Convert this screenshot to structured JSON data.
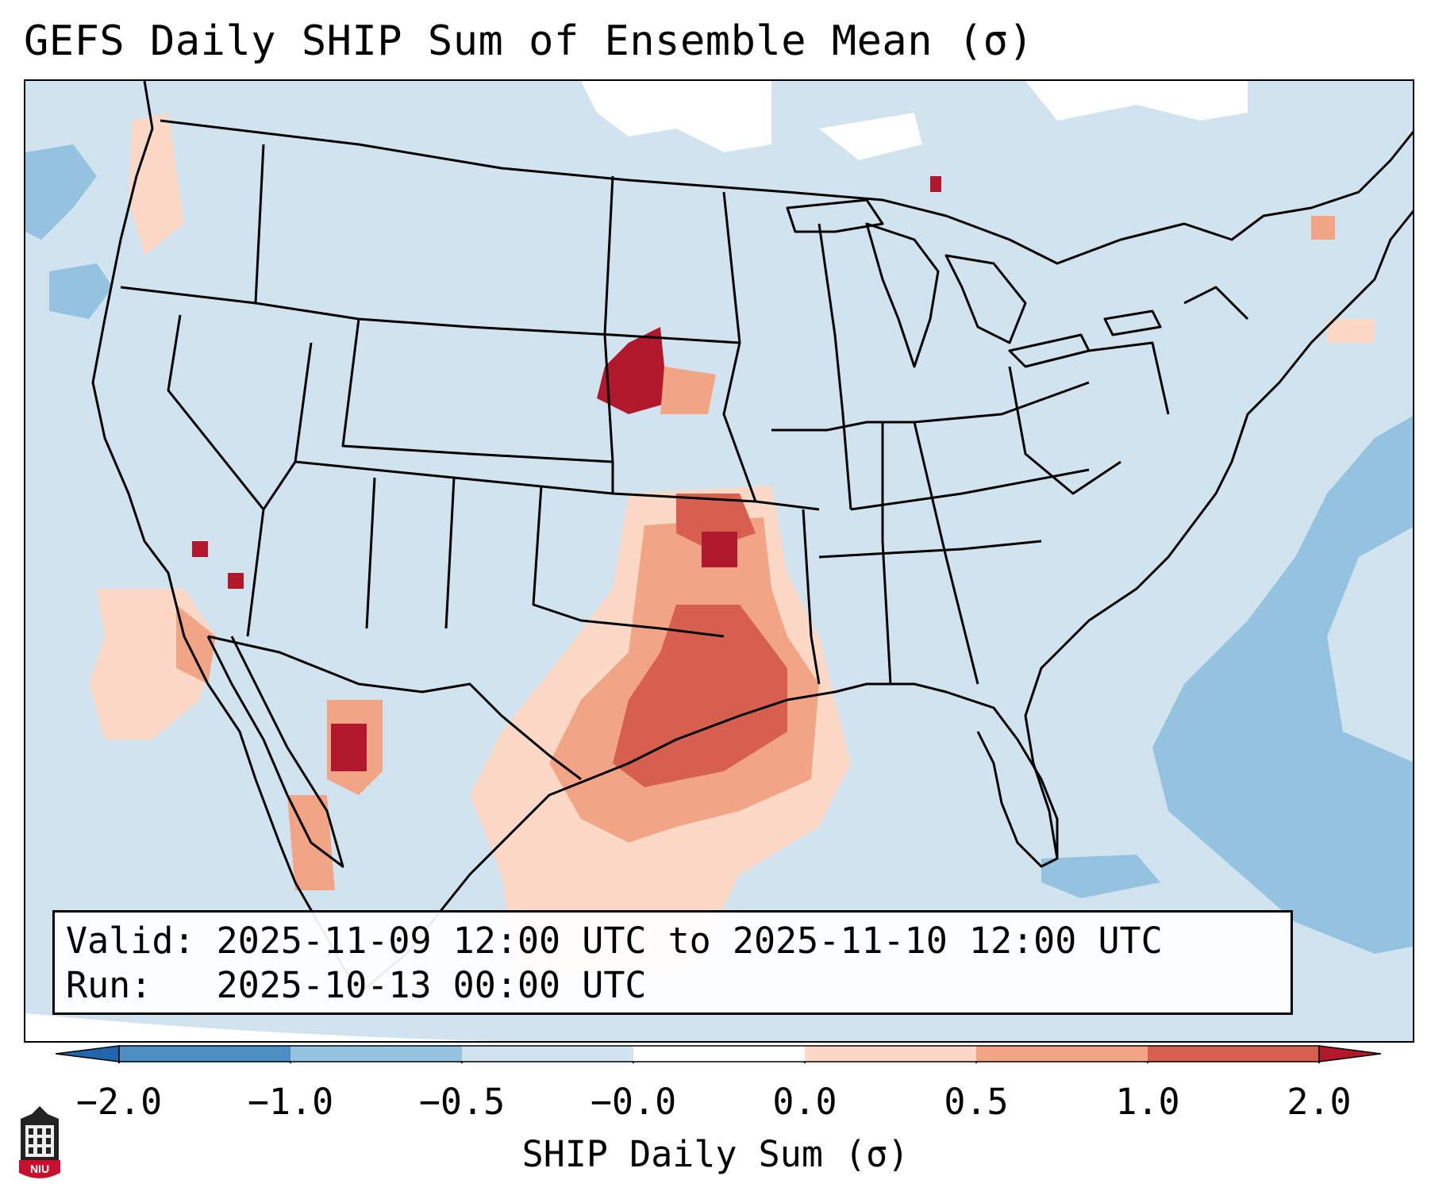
{
  "title": "GEFS Daily SHIP Sum of Ensemble Mean (σ)",
  "info": {
    "valid_label": "Valid:",
    "valid_value": "2025-11-09 12:00 UTC to 2025-11-10 12:00 UTC",
    "run_label": "Run:",
    "run_value": "2025-10-13 00:00 UTC"
  },
  "colorbar": {
    "label": "SHIP Daily Sum (σ)",
    "ticks": [
      "−2.0",
      "−1.0",
      "−0.5",
      "−0.0",
      "0.0",
      "0.5",
      "1.0",
      "2.0"
    ],
    "colors": [
      "#4b8fc4",
      "#93c3df",
      "#d0e3ef",
      "#ffffff",
      "#fcd9c6",
      "#f2a585",
      "#d6604d",
      "#b2182b"
    ]
  },
  "logo": {
    "text": "NIU",
    "color": "#c8102e"
  },
  "icons": [
    "niu-logo-icon"
  ]
}
